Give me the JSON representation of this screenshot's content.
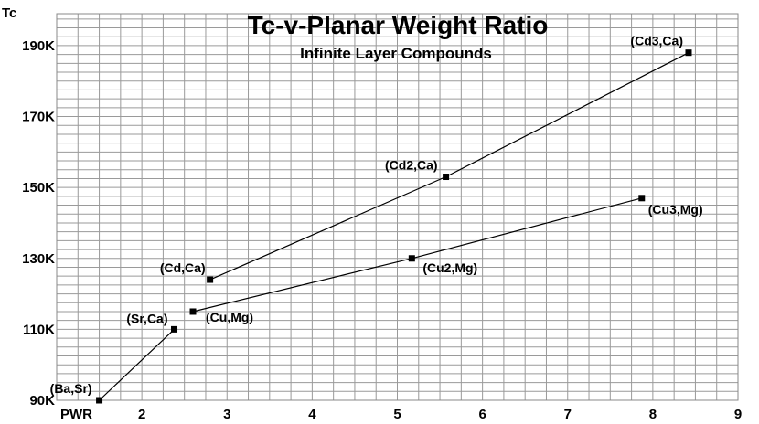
{
  "chart_data": {
    "type": "line",
    "title": "Tc-v-Planar Weight Ratio",
    "subtitle": "Infinite Layer Compounds",
    "ylabel": "Tc",
    "xlabel": "PWR",
    "x_ticks": [
      "2",
      "3",
      "4",
      "5",
      "6",
      "7",
      "8",
      "9"
    ],
    "y_ticks": [
      "90K",
      "110K",
      "130K",
      "150K",
      "170K",
      "190K"
    ],
    "xlim": [
      1,
      9
    ],
    "ylim": [
      90,
      199
    ],
    "grid": true,
    "series": [
      {
        "points": [
          {
            "label": "(Ba,Sr)",
            "x": 1.5,
            "y": 90
          },
          {
            "label": "(Sr,Ca)",
            "x": 2.38,
            "y": 110
          }
        ]
      },
      {
        "points": [
          {
            "label": "(Cu,Mg)",
            "x": 2.6,
            "y": 115
          },
          {
            "label": "(Cu2,Mg)",
            "x": 5.17,
            "y": 130
          },
          {
            "label": "(Cu3,Mg)",
            "x": 7.87,
            "y": 147
          }
        ]
      },
      {
        "points": [
          {
            "label": "(Cd,Ca)",
            "x": 2.8,
            "y": 124
          },
          {
            "label": "(Cd2,Ca)",
            "x": 5.57,
            "y": 153
          },
          {
            "label": "(Cd3,Ca)",
            "x": 8.42,
            "y": 188
          }
        ]
      }
    ]
  }
}
